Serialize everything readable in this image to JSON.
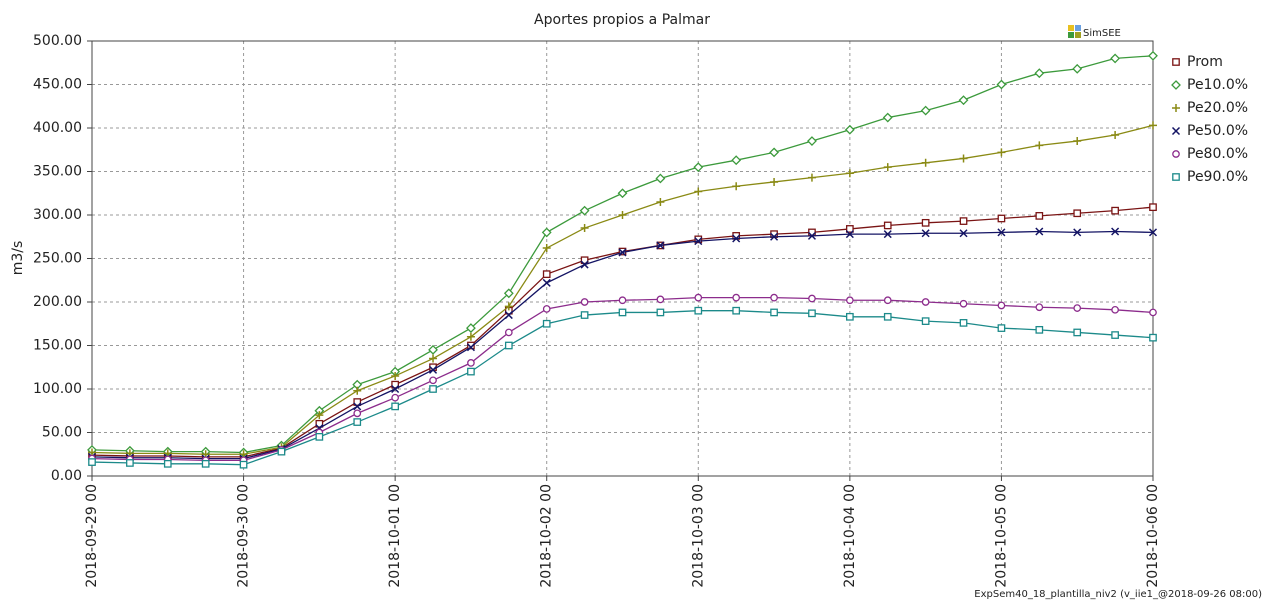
{
  "chart_data": {
    "type": "line",
    "title": "Aportes propios a Palmar",
    "y_label": "m3/s",
    "logo": "SimSEE",
    "footer": "ExpSem40_18_plantilla_niv2 (v_iie1_@2018-09-26 08:00)",
    "grid": true,
    "legend": "right",
    "x": [
      "2018-09-29 00",
      "2018-09-29 06",
      "2018-09-29 12",
      "2018-09-29 18",
      "2018-09-30 00",
      "2018-09-30 06",
      "2018-09-30 12",
      "2018-09-30 18",
      "2018-10-01 00",
      "2018-10-01 06",
      "2018-10-01 12",
      "2018-10-01 18",
      "2018-10-02 00",
      "2018-10-02 06",
      "2018-10-02 12",
      "2018-10-02 18",
      "2018-10-03 00",
      "2018-10-03 06",
      "2018-10-03 12",
      "2018-10-03 18",
      "2018-10-04 00",
      "2018-10-04 06",
      "2018-10-04 12",
      "2018-10-04 18",
      "2018-10-05 00",
      "2018-10-05 06",
      "2018-10-05 12",
      "2018-10-05 18",
      "2018-10-06 00"
    ],
    "xlim": [
      "2018-09-29 00",
      "2018-10-06 00"
    ],
    "xticks": [
      "2018-09-29 00",
      "2018-09-30 00",
      "2018-10-01 00",
      "2018-10-02 00",
      "2018-10-03 00",
      "2018-10-04 00",
      "2018-10-05 00",
      "2018-10-06 00"
    ],
    "ylim": [
      0,
      500
    ],
    "yticks": [
      {
        "value": 0,
        "label": "0.00"
      },
      {
        "value": 50,
        "label": "50.00"
      },
      {
        "value": 100,
        "label": "100.00"
      },
      {
        "value": 150,
        "label": "150.00"
      },
      {
        "value": 200,
        "label": "200.00"
      },
      {
        "value": 250,
        "label": "250.00"
      },
      {
        "value": 300,
        "label": "300.00"
      },
      {
        "value": 350,
        "label": "350.00"
      },
      {
        "value": 400,
        "label": "400.00"
      },
      {
        "value": 450,
        "label": "450.00"
      },
      {
        "value": 500,
        "label": "500.00"
      }
    ],
    "series": [
      {
        "name": "Prom",
        "color": "#7a1414",
        "marker": "square",
        "values": [
          24,
          23,
          23,
          22,
          22,
          32,
          60,
          85,
          105,
          125,
          150,
          190,
          232,
          248,
          258,
          265,
          272,
          276,
          278,
          280,
          284,
          288,
          291,
          293,
          296,
          299,
          302,
          305,
          309
        ]
      },
      {
        "name": "Pe10.0%",
        "color": "#3c9a3c",
        "marker": "diamond",
        "values": [
          30,
          29,
          28,
          28,
          27,
          35,
          75,
          105,
          120,
          145,
          170,
          210,
          280,
          305,
          325,
          342,
          355,
          363,
          372,
          385,
          398,
          412,
          420,
          432,
          450,
          463,
          468,
          480,
          483
        ]
      },
      {
        "name": "Pe20.0%",
        "color": "#8a8a14",
        "marker": "plus",
        "values": [
          27,
          26,
          26,
          25,
          25,
          33,
          70,
          98,
          115,
          135,
          160,
          195,
          262,
          285,
          300,
          315,
          327,
          333,
          338,
          343,
          348,
          355,
          360,
          365,
          372,
          380,
          385,
          392,
          403
        ]
      },
      {
        "name": "Pe50.0%",
        "color": "#141464",
        "marker": "cross",
        "values": [
          22,
          21,
          21,
          20,
          20,
          31,
          55,
          80,
          100,
          122,
          148,
          185,
          222,
          243,
          257,
          265,
          270,
          273,
          275,
          276,
          278,
          278,
          279,
          279,
          280,
          281,
          280,
          281,
          280
        ]
      },
      {
        "name": "Pe80.0%",
        "color": "#8c2c8c",
        "marker": "circle",
        "values": [
          20,
          19,
          19,
          18,
          18,
          30,
          50,
          72,
          90,
          110,
          130,
          165,
          192,
          200,
          202,
          203,
          205,
          205,
          205,
          204,
          202,
          202,
          200,
          198,
          196,
          194,
          193,
          191,
          188
        ]
      },
      {
        "name": "Pe90.0%",
        "color": "#1c8a8a",
        "marker": "square",
        "values": [
          16,
          15,
          14,
          14,
          13,
          28,
          45,
          62,
          80,
          100,
          120,
          150,
          175,
          185,
          188,
          188,
          190,
          190,
          188,
          187,
          183,
          183,
          178,
          176,
          170,
          168,
          165,
          162,
          159
        ]
      }
    ]
  }
}
